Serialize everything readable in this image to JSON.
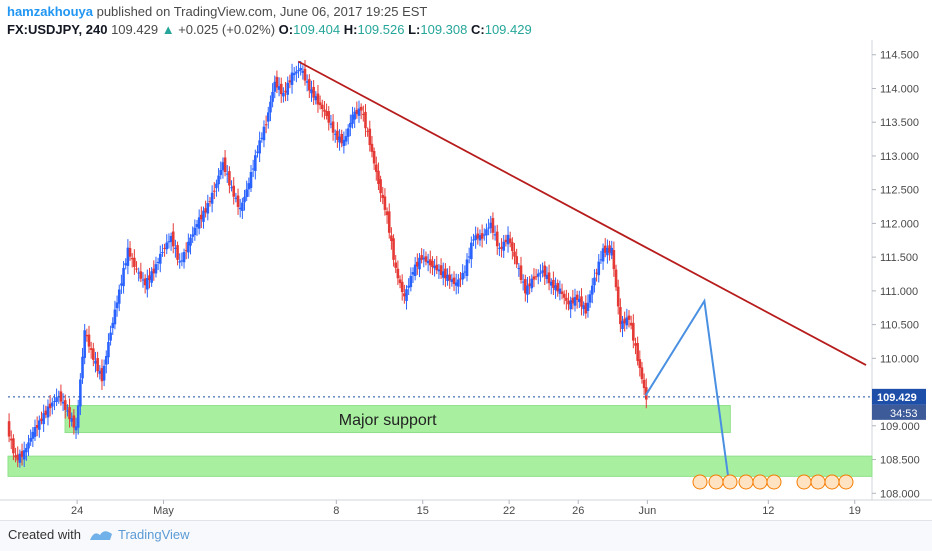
{
  "header": {
    "author": "hamzakhouya",
    "published_text": " published on TradingView.com, June 06, 2017 19:25 EST",
    "symbol": "FX:USDJPY, 240",
    "last": "109.429",
    "change_arrow": "▲",
    "change": "+0.025 (+0.02%)",
    "open_label": "O:",
    "open": "109.404",
    "high_label": "H:",
    "high": "109.526",
    "low_label": "L:",
    "low": "109.308",
    "close_label": "C:",
    "close": "109.429"
  },
  "footer": {
    "created_with": "Created with",
    "brand": "TradingView"
  },
  "colors": {
    "up": "#2962ff",
    "down": "#e53935",
    "trendline": "#b71c1c",
    "projection": "#4a90e2",
    "support": "#a8f0a0",
    "price_tag": "#1e4fa8"
  },
  "chart_data": {
    "type": "candlestick",
    "ylim": [
      107.9,
      114.6
    ],
    "y_ticks": [
      "114.500",
      "114.000",
      "113.500",
      "113.000",
      "112.500",
      "112.000",
      "111.500",
      "111.000",
      "110.500",
      "110.000",
      "109.000",
      "108.500",
      "108.000"
    ],
    "x_ticks": [
      {
        "label": "24",
        "x": 10
      },
      {
        "label": "May",
        "x": 15
      },
      {
        "label": "8",
        "x": 25
      },
      {
        "label": "15",
        "x": 30
      },
      {
        "label": "22",
        "x": 35
      },
      {
        "label": "26",
        "x": 39
      },
      {
        "label": "Jun",
        "x": 43
      },
      {
        "label": "12",
        "x": 50
      },
      {
        "label": "19",
        "x": 55
      }
    ],
    "x_range": [
      6,
      56
    ],
    "current_price": "109.429",
    "countdown": "34:53",
    "annotation": "Major support",
    "support_zones": [
      {
        "from": 109.3,
        "to": 108.9,
        "x_start": 9.3,
        "x_end": 47.8,
        "label": "Major support"
      },
      {
        "from": 108.55,
        "to": 108.25,
        "x_start": 6,
        "x_end": 56,
        "label": ""
      }
    ],
    "trendline": [
      {
        "x": 22.8,
        "y": 114.4
      },
      {
        "x": 56,
        "y": 109.9
      }
    ],
    "projection": [
      {
        "x": 42.9,
        "y": 109.45
      },
      {
        "x": 46.3,
        "y": 110.85
      },
      {
        "x": 47.7,
        "y": 108.2
      }
    ],
    "price_path": [
      {
        "x": 6.0,
        "y": 109.0
      },
      {
        "x": 6.5,
        "y": 108.5
      },
      {
        "x": 7.0,
        "y": 108.6
      },
      {
        "x": 7.5,
        "y": 108.9
      },
      {
        "x": 8.0,
        "y": 109.1
      },
      {
        "x": 8.5,
        "y": 109.3
      },
      {
        "x": 9.0,
        "y": 109.45
      },
      {
        "x": 9.5,
        "y": 109.2
      },
      {
        "x": 10.0,
        "y": 108.95
      },
      {
        "x": 10.5,
        "y": 110.4
      },
      {
        "x": 11.0,
        "y": 110.0
      },
      {
        "x": 11.5,
        "y": 109.7
      },
      {
        "x": 12.0,
        "y": 110.4
      },
      {
        "x": 12.5,
        "y": 111.0
      },
      {
        "x": 13.0,
        "y": 111.6
      },
      {
        "x": 13.5,
        "y": 111.3
      },
      {
        "x": 14.0,
        "y": 111.1
      },
      {
        "x": 14.5,
        "y": 111.3
      },
      {
        "x": 15.0,
        "y": 111.6
      },
      {
        "x": 15.5,
        "y": 111.8
      },
      {
        "x": 16.0,
        "y": 111.4
      },
      {
        "x": 16.5,
        "y": 111.7
      },
      {
        "x": 17.0,
        "y": 112.0
      },
      {
        "x": 17.5,
        "y": 112.2
      },
      {
        "x": 18.0,
        "y": 112.5
      },
      {
        "x": 18.5,
        "y": 112.9
      },
      {
        "x": 19.0,
        "y": 112.5
      },
      {
        "x": 19.5,
        "y": 112.2
      },
      {
        "x": 20.0,
        "y": 112.6
      },
      {
        "x": 20.5,
        "y": 113.1
      },
      {
        "x": 21.0,
        "y": 113.5
      },
      {
        "x": 21.5,
        "y": 114.1
      },
      {
        "x": 22.0,
        "y": 113.9
      },
      {
        "x": 22.5,
        "y": 114.2
      },
      {
        "x": 23.0,
        "y": 114.3
      },
      {
        "x": 23.5,
        "y": 114.0
      },
      {
        "x": 24.0,
        "y": 113.8
      },
      {
        "x": 24.5,
        "y": 113.6
      },
      {
        "x": 25.0,
        "y": 113.3
      },
      {
        "x": 25.5,
        "y": 113.2
      },
      {
        "x": 26.0,
        "y": 113.6
      },
      {
        "x": 26.5,
        "y": 113.7
      },
      {
        "x": 27.0,
        "y": 113.2
      },
      {
        "x": 27.5,
        "y": 112.6
      },
      {
        "x": 28.0,
        "y": 112.1
      },
      {
        "x": 28.5,
        "y": 111.3
      },
      {
        "x": 29.0,
        "y": 110.9
      },
      {
        "x": 29.5,
        "y": 111.3
      },
      {
        "x": 30.0,
        "y": 111.5
      },
      {
        "x": 30.5,
        "y": 111.4
      },
      {
        "x": 31.0,
        "y": 111.3
      },
      {
        "x": 31.5,
        "y": 111.2
      },
      {
        "x": 32.0,
        "y": 111.1
      },
      {
        "x": 32.5,
        "y": 111.3
      },
      {
        "x": 33.0,
        "y": 111.8
      },
      {
        "x": 33.5,
        "y": 111.8
      },
      {
        "x": 34.0,
        "y": 112.0
      },
      {
        "x": 34.5,
        "y": 111.6
      },
      {
        "x": 35.0,
        "y": 111.8
      },
      {
        "x": 35.5,
        "y": 111.4
      },
      {
        "x": 36.0,
        "y": 111.0
      },
      {
        "x": 36.5,
        "y": 111.2
      },
      {
        "x": 37.0,
        "y": 111.3
      },
      {
        "x": 37.5,
        "y": 111.1
      },
      {
        "x": 38.0,
        "y": 111.0
      },
      {
        "x": 38.5,
        "y": 110.8
      },
      {
        "x": 39.0,
        "y": 110.9
      },
      {
        "x": 39.5,
        "y": 110.7
      },
      {
        "x": 40.0,
        "y": 111.2
      },
      {
        "x": 40.5,
        "y": 111.6
      },
      {
        "x": 41.0,
        "y": 111.6
      },
      {
        "x": 41.5,
        "y": 110.5
      },
      {
        "x": 42.0,
        "y": 110.6
      },
      {
        "x": 42.5,
        "y": 110.0
      },
      {
        "x": 43.0,
        "y": 109.4
      }
    ]
  }
}
